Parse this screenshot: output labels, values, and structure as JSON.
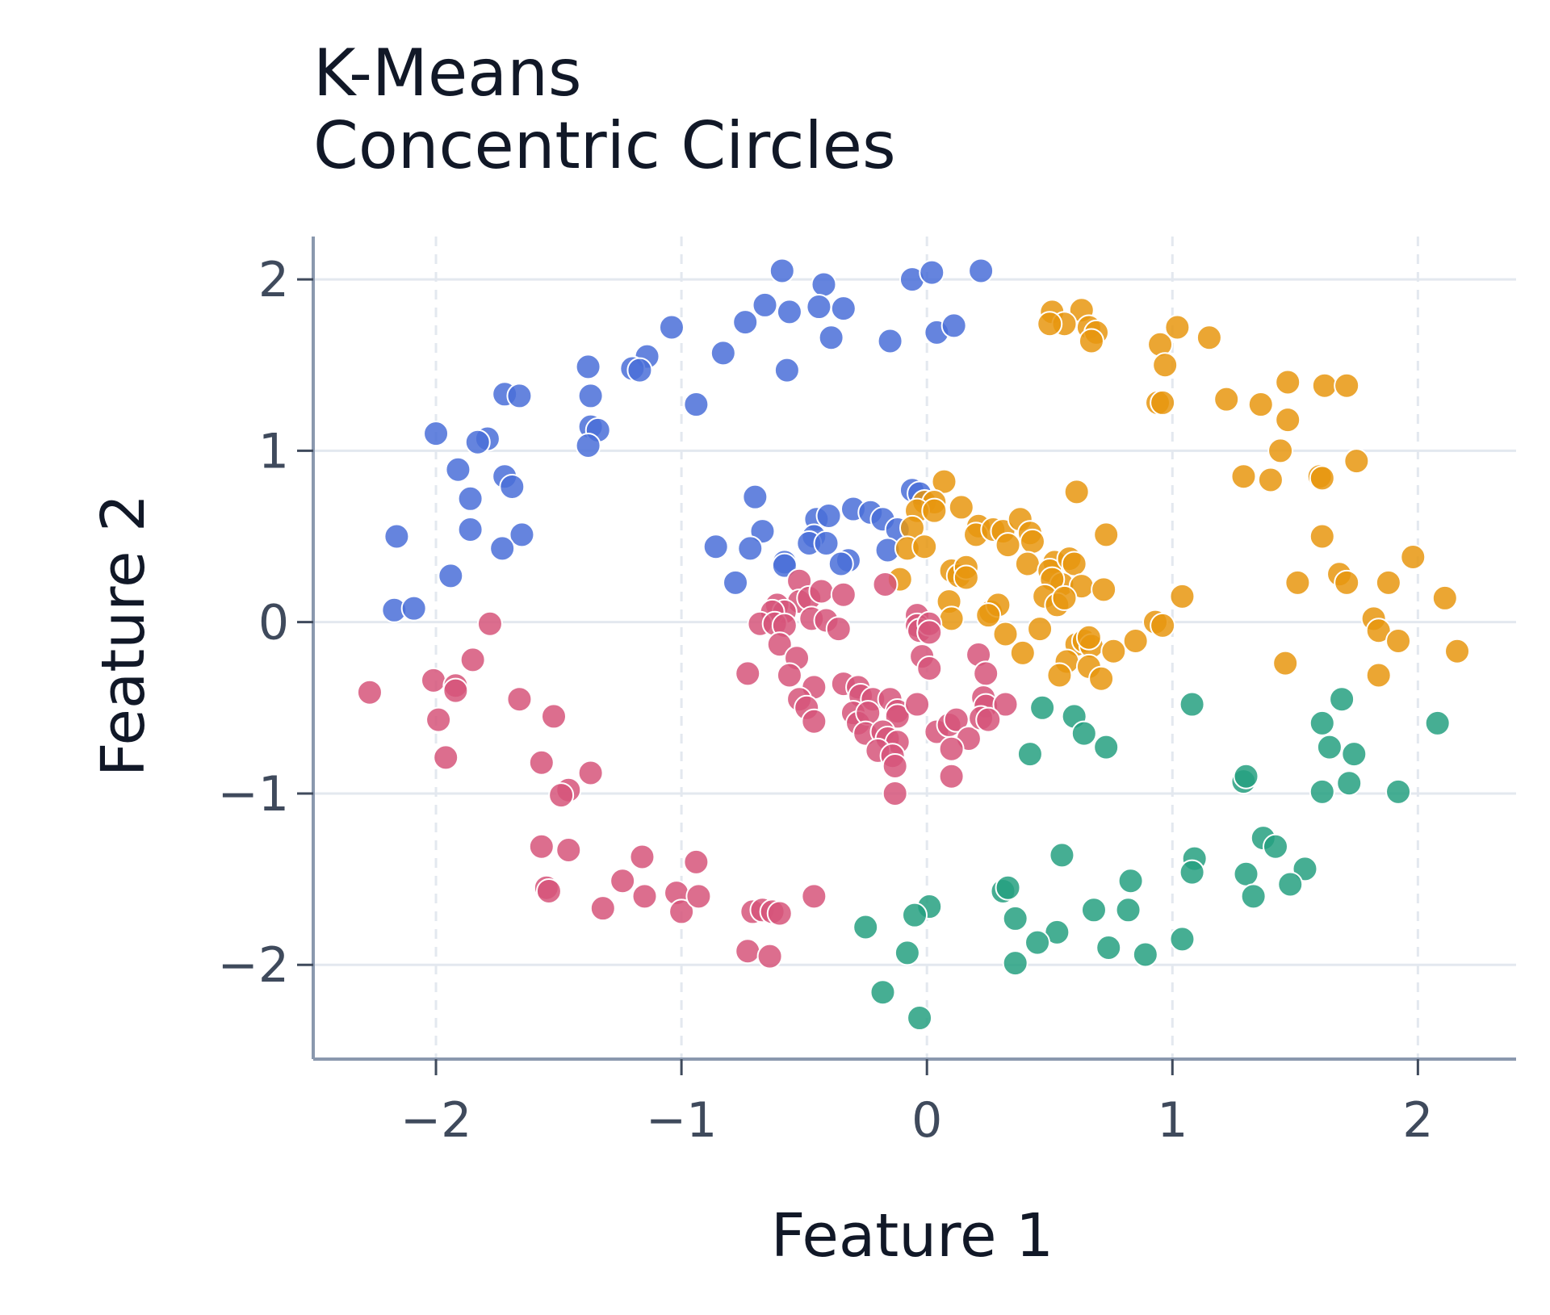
{
  "chart_data": {
    "type": "scatter",
    "title": [
      "K-Means",
      "Concentric Circles"
    ],
    "xlabel": "Feature 1",
    "ylabel": "Feature 2",
    "xlim": [
      -2.5,
      2.4
    ],
    "ylim": [
      -2.55,
      2.25
    ],
    "xticks": [
      -2,
      -1,
      0,
      1,
      2
    ],
    "yticks": [
      -2,
      -1,
      0,
      1,
      2
    ],
    "xtick_labels": [
      "−2",
      "−1",
      "0",
      "1",
      "2"
    ],
    "ytick_labels": [
      "−2",
      "−1",
      "0",
      "1",
      "2"
    ],
    "grid": true,
    "legend": "none",
    "series": [
      {
        "color": "#4a6fd8",
        "points": [
          [
            -0.59,
            2.05
          ],
          [
            -0.42,
            1.97
          ],
          [
            -0.06,
            2.0
          ],
          [
            0.02,
            2.04
          ],
          [
            0.22,
            2.05
          ],
          [
            -0.66,
            1.85
          ],
          [
            -0.56,
            1.81
          ],
          [
            -0.44,
            1.84
          ],
          [
            -0.34,
            1.83
          ],
          [
            -0.74,
            1.75
          ],
          [
            -1.04,
            1.72
          ],
          [
            -0.39,
            1.66
          ],
          [
            -0.15,
            1.64
          ],
          [
            0.04,
            1.69
          ],
          [
            0.11,
            1.73
          ],
          [
            -0.83,
            1.57
          ],
          [
            -1.14,
            1.55
          ],
          [
            -1.2,
            1.48
          ],
          [
            -1.17,
            1.47
          ],
          [
            -1.38,
            1.49
          ],
          [
            -0.57,
            1.47
          ],
          [
            -1.37,
            1.32
          ],
          [
            -0.94,
            1.27
          ],
          [
            -1.72,
            1.33
          ],
          [
            -1.66,
            1.32
          ],
          [
            -1.37,
            1.14
          ],
          [
            -1.34,
            1.12
          ],
          [
            -1.38,
            1.03
          ],
          [
            -2.0,
            1.1
          ],
          [
            -1.79,
            1.07
          ],
          [
            -1.83,
            1.05
          ],
          [
            -1.91,
            0.89
          ],
          [
            -1.72,
            0.85
          ],
          [
            -1.69,
            0.79
          ],
          [
            -1.86,
            0.72
          ],
          [
            -1.86,
            0.54
          ],
          [
            -1.65,
            0.51
          ],
          [
            -1.73,
            0.43
          ],
          [
            -2.16,
            0.5
          ],
          [
            -1.94,
            0.27
          ],
          [
            -2.17,
            0.07
          ],
          [
            -2.09,
            0.08
          ],
          [
            -0.7,
            0.73
          ],
          [
            -0.67,
            0.53
          ],
          [
            -0.86,
            0.44
          ],
          [
            -0.72,
            0.43
          ],
          [
            -0.78,
            0.23
          ],
          [
            -0.45,
            0.6
          ],
          [
            -0.4,
            0.62
          ],
          [
            -0.46,
            0.5
          ],
          [
            -0.48,
            0.46
          ],
          [
            -0.41,
            0.46
          ],
          [
            -0.3,
            0.66
          ],
          [
            -0.23,
            0.64
          ],
          [
            -0.18,
            0.6
          ],
          [
            -0.32,
            0.36
          ],
          [
            -0.35,
            0.34
          ],
          [
            -0.58,
            0.35
          ],
          [
            -0.58,
            0.33
          ],
          [
            -0.12,
            0.54
          ],
          [
            -0.16,
            0.42
          ],
          [
            -0.06,
            0.77
          ],
          [
            -0.03,
            0.75
          ]
        ]
      },
      {
        "color": "#e8960f",
        "points": [
          [
            0.51,
            1.81
          ],
          [
            0.63,
            1.82
          ],
          [
            0.56,
            1.74
          ],
          [
            0.5,
            1.74
          ],
          [
            0.66,
            1.72
          ],
          [
            0.69,
            1.69
          ],
          [
            0.67,
            1.64
          ],
          [
            1.02,
            1.72
          ],
          [
            1.15,
            1.66
          ],
          [
            0.95,
            1.62
          ],
          [
            0.97,
            1.5
          ],
          [
            0.94,
            1.28
          ],
          [
            0.96,
            1.28
          ],
          [
            1.22,
            1.3
          ],
          [
            1.36,
            1.27
          ],
          [
            1.47,
            1.4
          ],
          [
            1.62,
            1.38
          ],
          [
            1.71,
            1.38
          ],
          [
            1.47,
            1.18
          ],
          [
            1.44,
            1.0
          ],
          [
            1.75,
            0.94
          ],
          [
            1.29,
            0.85
          ],
          [
            1.4,
            0.83
          ],
          [
            1.6,
            0.85
          ],
          [
            1.61,
            0.84
          ],
          [
            0.61,
            0.76
          ],
          [
            0.07,
            0.82
          ],
          [
            -0.01,
            0.7
          ],
          [
            0.03,
            0.7
          ],
          [
            -0.04,
            0.65
          ],
          [
            0.03,
            0.65
          ],
          [
            0.14,
            0.67
          ],
          [
            0.21,
            0.56
          ],
          [
            0.2,
            0.51
          ],
          [
            0.27,
            0.54
          ],
          [
            0.31,
            0.53
          ],
          [
            0.38,
            0.6
          ],
          [
            0.33,
            0.45
          ],
          [
            0.42,
            0.52
          ],
          [
            0.43,
            0.47
          ],
          [
            0.73,
            0.51
          ],
          [
            -0.06,
            0.55
          ],
          [
            -0.08,
            0.43
          ],
          [
            -0.01,
            0.44
          ],
          [
            0.1,
            0.3
          ],
          [
            0.13,
            0.27
          ],
          [
            0.16,
            0.32
          ],
          [
            0.16,
            0.26
          ],
          [
            0.41,
            0.34
          ],
          [
            0.52,
            0.35
          ],
          [
            0.5,
            0.3
          ],
          [
            0.58,
            0.37
          ],
          [
            0.6,
            0.34
          ],
          [
            0.55,
            0.22
          ],
          [
            0.51,
            0.25
          ],
          [
            0.63,
            0.21
          ],
          [
            0.72,
            0.19
          ],
          [
            -0.11,
            0.25
          ],
          [
            0.09,
            0.12
          ],
          [
            0.26,
            0.06
          ],
          [
            0.29,
            0.1
          ],
          [
            0.25,
            0.04
          ],
          [
            0.48,
            0.15
          ],
          [
            0.53,
            0.1
          ],
          [
            0.56,
            0.14
          ],
          [
            0.1,
            0.02
          ],
          [
            0.32,
            -0.07
          ],
          [
            0.46,
            -0.04
          ],
          [
            0.61,
            -0.13
          ],
          [
            0.64,
            -0.11
          ],
          [
            0.67,
            -0.14
          ],
          [
            0.66,
            -0.09
          ],
          [
            0.76,
            -0.17
          ],
          [
            0.39,
            -0.18
          ],
          [
            0.57,
            -0.23
          ],
          [
            0.54,
            -0.31
          ],
          [
            0.66,
            -0.26
          ],
          [
            0.71,
            -0.33
          ],
          [
            0.85,
            -0.11
          ],
          [
            0.93,
            0.0
          ],
          [
            0.96,
            -0.02
          ],
          [
            1.04,
            0.15
          ],
          [
            1.51,
            0.23
          ],
          [
            1.68,
            0.28
          ],
          [
            1.71,
            0.23
          ],
          [
            1.88,
            0.23
          ],
          [
            1.98,
            0.38
          ],
          [
            2.11,
            0.14
          ],
          [
            1.82,
            0.02
          ],
          [
            1.84,
            -0.05
          ],
          [
            1.92,
            -0.11
          ],
          [
            1.46,
            -0.24
          ],
          [
            1.84,
            -0.31
          ],
          [
            2.16,
            -0.17
          ],
          [
            1.61,
            0.5
          ]
        ]
      },
      {
        "color": "#d6557a",
        "points": [
          [
            -2.27,
            -0.41
          ],
          [
            -1.78,
            -0.01
          ],
          [
            -1.85,
            -0.22
          ],
          [
            -2.01,
            -0.34
          ],
          [
            -1.92,
            -0.37
          ],
          [
            -1.92,
            -0.4
          ],
          [
            -1.66,
            -0.45
          ],
          [
            -1.99,
            -0.57
          ],
          [
            -1.52,
            -0.55
          ],
          [
            -1.96,
            -0.79
          ],
          [
            -1.57,
            -0.82
          ],
          [
            -1.37,
            -0.88
          ],
          [
            -1.46,
            -0.98
          ],
          [
            -1.49,
            -1.01
          ],
          [
            -1.57,
            -1.31
          ],
          [
            -1.46,
            -1.33
          ],
          [
            -1.55,
            -1.55
          ],
          [
            -1.54,
            -1.57
          ],
          [
            -1.32,
            -1.67
          ],
          [
            -1.24,
            -1.51
          ],
          [
            -1.16,
            -1.37
          ],
          [
            -1.15,
            -1.6
          ],
          [
            -1.02,
            -1.58
          ],
          [
            -1.0,
            -1.69
          ],
          [
            -0.93,
            -1.6
          ],
          [
            -0.94,
            -1.4
          ],
          [
            -0.71,
            -1.69
          ],
          [
            -0.67,
            -1.68
          ],
          [
            -0.63,
            -1.69
          ],
          [
            -0.6,
            -1.7
          ],
          [
            -0.73,
            -1.92
          ],
          [
            -0.64,
            -1.95
          ],
          [
            -0.46,
            -1.6
          ],
          [
            -0.52,
            0.24
          ],
          [
            -0.52,
            0.12
          ],
          [
            -0.48,
            0.14
          ],
          [
            -0.43,
            0.18
          ],
          [
            -0.34,
            0.16
          ],
          [
            -0.61,
            0.1
          ],
          [
            -0.58,
            0.06
          ],
          [
            -0.63,
            0.06
          ],
          [
            -0.68,
            -0.01
          ],
          [
            -0.62,
            -0.01
          ],
          [
            -0.58,
            -0.02
          ],
          [
            -0.47,
            0.02
          ],
          [
            -0.41,
            0.01
          ],
          [
            -0.36,
            -0.04
          ],
          [
            -0.6,
            -0.13
          ],
          [
            -0.53,
            -0.21
          ],
          [
            -0.56,
            -0.31
          ],
          [
            -0.73,
            -0.3
          ],
          [
            -0.46,
            -0.38
          ],
          [
            -0.34,
            -0.36
          ],
          [
            -0.28,
            -0.38
          ],
          [
            -0.27,
            -0.43
          ],
          [
            -0.22,
            -0.45
          ],
          [
            -0.52,
            -0.45
          ],
          [
            -0.49,
            -0.5
          ],
          [
            -0.46,
            -0.58
          ],
          [
            -0.3,
            -0.53
          ],
          [
            -0.28,
            -0.59
          ],
          [
            -0.24,
            -0.53
          ],
          [
            -0.25,
            -0.65
          ],
          [
            -0.15,
            -0.45
          ],
          [
            -0.12,
            -0.52
          ],
          [
            -0.12,
            -0.55
          ],
          [
            -0.04,
            -0.48
          ],
          [
            -0.18,
            -0.64
          ],
          [
            -0.16,
            -0.68
          ],
          [
            -0.12,
            -0.7
          ],
          [
            -0.2,
            -0.75
          ],
          [
            -0.14,
            -0.78
          ],
          [
            -0.13,
            -0.84
          ],
          [
            -0.13,
            -1.0
          ],
          [
            -0.17,
            0.22
          ],
          [
            -0.04,
            0.04
          ],
          [
            -0.04,
            -0.02
          ],
          [
            -0.03,
            -0.05
          ],
          [
            0.01,
            -0.01
          ],
          [
            0.01,
            -0.06
          ],
          [
            -0.02,
            -0.2
          ],
          [
            0.01,
            -0.27
          ],
          [
            0.04,
            -0.64
          ],
          [
            0.09,
            -0.6
          ],
          [
            0.12,
            -0.57
          ],
          [
            0.17,
            -0.68
          ],
          [
            0.1,
            -0.74
          ],
          [
            0.1,
            -0.9
          ],
          [
            0.21,
            -0.19
          ],
          [
            0.24,
            -0.3
          ],
          [
            0.23,
            -0.44
          ],
          [
            0.24,
            -0.49
          ],
          [
            0.32,
            -0.48
          ],
          [
            0.22,
            -0.56
          ],
          [
            0.25,
            -0.57
          ]
        ]
      },
      {
        "color": "#26a080",
        "points": [
          [
            0.47,
            -0.5
          ],
          [
            0.6,
            -0.55
          ],
          [
            0.64,
            -0.65
          ],
          [
            0.73,
            -0.73
          ],
          [
            0.42,
            -0.77
          ],
          [
            1.08,
            -0.48
          ],
          [
            1.69,
            -0.45
          ],
          [
            1.61,
            -0.59
          ],
          [
            1.64,
            -0.73
          ],
          [
            1.74,
            -0.77
          ],
          [
            2.08,
            -0.59
          ],
          [
            1.29,
            -0.93
          ],
          [
            1.3,
            -0.9
          ],
          [
            1.61,
            -0.99
          ],
          [
            1.72,
            -0.94
          ],
          [
            1.92,
            -0.99
          ],
          [
            1.37,
            -1.26
          ],
          [
            1.42,
            -1.31
          ],
          [
            1.54,
            -1.44
          ],
          [
            1.09,
            -1.38
          ],
          [
            1.08,
            -1.46
          ],
          [
            1.3,
            -1.47
          ],
          [
            1.33,
            -1.6
          ],
          [
            1.48,
            -1.53
          ],
          [
            0.55,
            -1.36
          ],
          [
            0.83,
            -1.51
          ],
          [
            0.82,
            -1.68
          ],
          [
            0.68,
            -1.68
          ],
          [
            0.31,
            -1.57
          ],
          [
            0.33,
            -1.55
          ],
          [
            0.36,
            -1.73
          ],
          [
            0.53,
            -1.81
          ],
          [
            0.45,
            -1.87
          ],
          [
            0.74,
            -1.9
          ],
          [
            0.89,
            -1.94
          ],
          [
            1.04,
            -1.85
          ],
          [
            0.36,
            -1.99
          ],
          [
            0.01,
            -1.66
          ],
          [
            -0.05,
            -1.71
          ],
          [
            -0.25,
            -1.78
          ],
          [
            -0.08,
            -1.93
          ],
          [
            -0.18,
            -2.16
          ],
          [
            -0.03,
            -2.31
          ]
        ]
      }
    ]
  }
}
